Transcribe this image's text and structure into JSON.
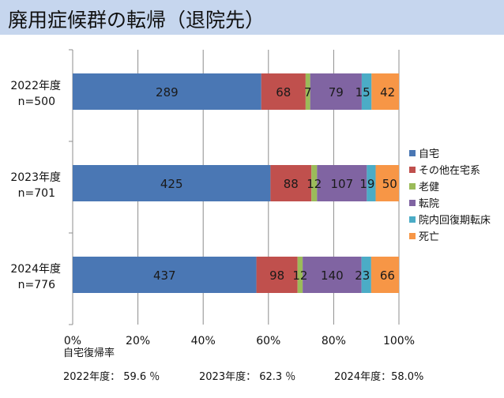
{
  "page": {
    "title": "廃用症候群の転帰（退院先）"
  },
  "footer": {
    "label": "自宅復帰率",
    "rates": [
      {
        "year": "2022年度：",
        "value": "59.6 ％"
      },
      {
        "year": "2023年度：",
        "value": "62.3 ％"
      },
      {
        "year": "2024年度：",
        "value": "58.0%"
      }
    ]
  },
  "chart_data": {
    "type": "bar",
    "orientation": "horizontal",
    "stacked": "percent",
    "categories": [
      {
        "year": "2022年度",
        "n": "n=500"
      },
      {
        "year": "2023年度",
        "n": "n=701"
      },
      {
        "year": "2024年度",
        "n": "n=776"
      }
    ],
    "series": [
      {
        "name": "自宅",
        "color": "#4a77b4",
        "values": [
          289,
          425,
          437
        ]
      },
      {
        "name": "その他在宅系",
        "color": "#c0504d",
        "values": [
          68,
          88,
          98
        ]
      },
      {
        "name": "老健",
        "color": "#9bbb59",
        "values": [
          7,
          12,
          12
        ]
      },
      {
        "name": "転院",
        "color": "#8064a2",
        "values": [
          79,
          107,
          140
        ]
      },
      {
        "name": "院内回復期転床",
        "color": "#4bacc6",
        "values": [
          15,
          19,
          23
        ]
      },
      {
        "name": "死亡",
        "color": "#f79646",
        "values": [
          42,
          50,
          66
        ]
      }
    ],
    "xlim": [
      0,
      100
    ],
    "x_ticks": [
      "0%",
      "20%",
      "40%",
      "60%",
      "80%",
      "100%"
    ],
    "grid": "vertical",
    "legend_position": "right"
  }
}
